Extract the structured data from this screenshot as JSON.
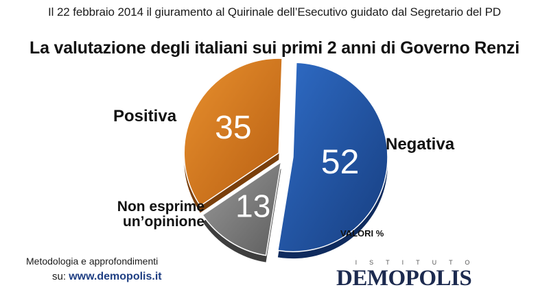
{
  "header": {
    "subtitle": "Il 22 febbraio 2014 il giuramento al Quirinale dell’Esecutivo guidato dal Segretario del PD",
    "title": "La valutazione degli italiani sui primi 2 anni di Governo Renzi"
  },
  "chart_data": {
    "type": "pie",
    "units": "VALORI %",
    "slices": [
      {
        "name": "Negativa",
        "value": 52,
        "color": "#1f4f9a"
      },
      {
        "name": "Non esprime un’opinione",
        "value": 13,
        "color": "#777777"
      },
      {
        "name": "Positiva",
        "value": 35,
        "color": "#cc6f1a"
      }
    ]
  },
  "labels": {
    "positiva": "Positiva",
    "negativa": "Negativa",
    "non_esprime_line1": "Non esprime",
    "non_esprime_line2": "un’opinione"
  },
  "footer": {
    "method_text": "Metodologia e approfondimenti",
    "method_prefix": "su: ",
    "method_link": "www.demopolis.it",
    "logo_top": "ISTITUTO",
    "logo_name": "DEMOPOLIS"
  }
}
